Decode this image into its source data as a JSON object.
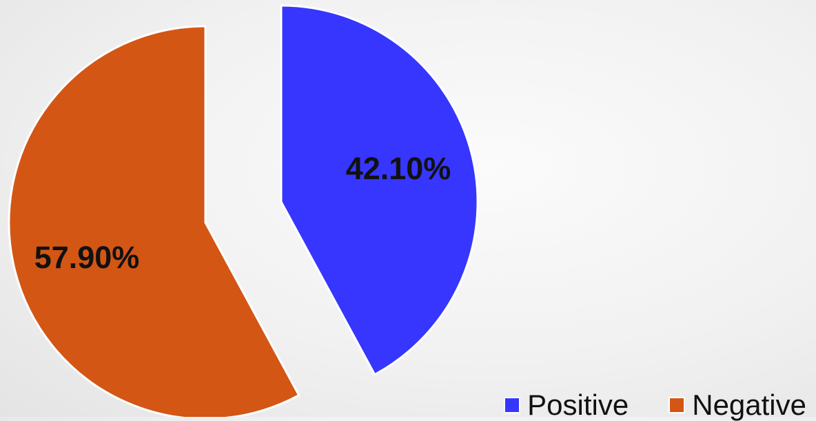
{
  "chart_data": {
    "type": "pie",
    "title": "",
    "slices": [
      {
        "name": "Positive",
        "value": 42.1,
        "label": "42.10%",
        "color": "#3636ff"
      },
      {
        "name": "Negative",
        "value": 57.9,
        "label": "57.90%",
        "color": "#d35615"
      }
    ],
    "exploded": true,
    "legend_position": "bottom-right"
  },
  "legend": {
    "items": [
      {
        "label": "Positive",
        "color": "#3636ff"
      },
      {
        "label": "Negative",
        "color": "#d35615"
      }
    ]
  }
}
